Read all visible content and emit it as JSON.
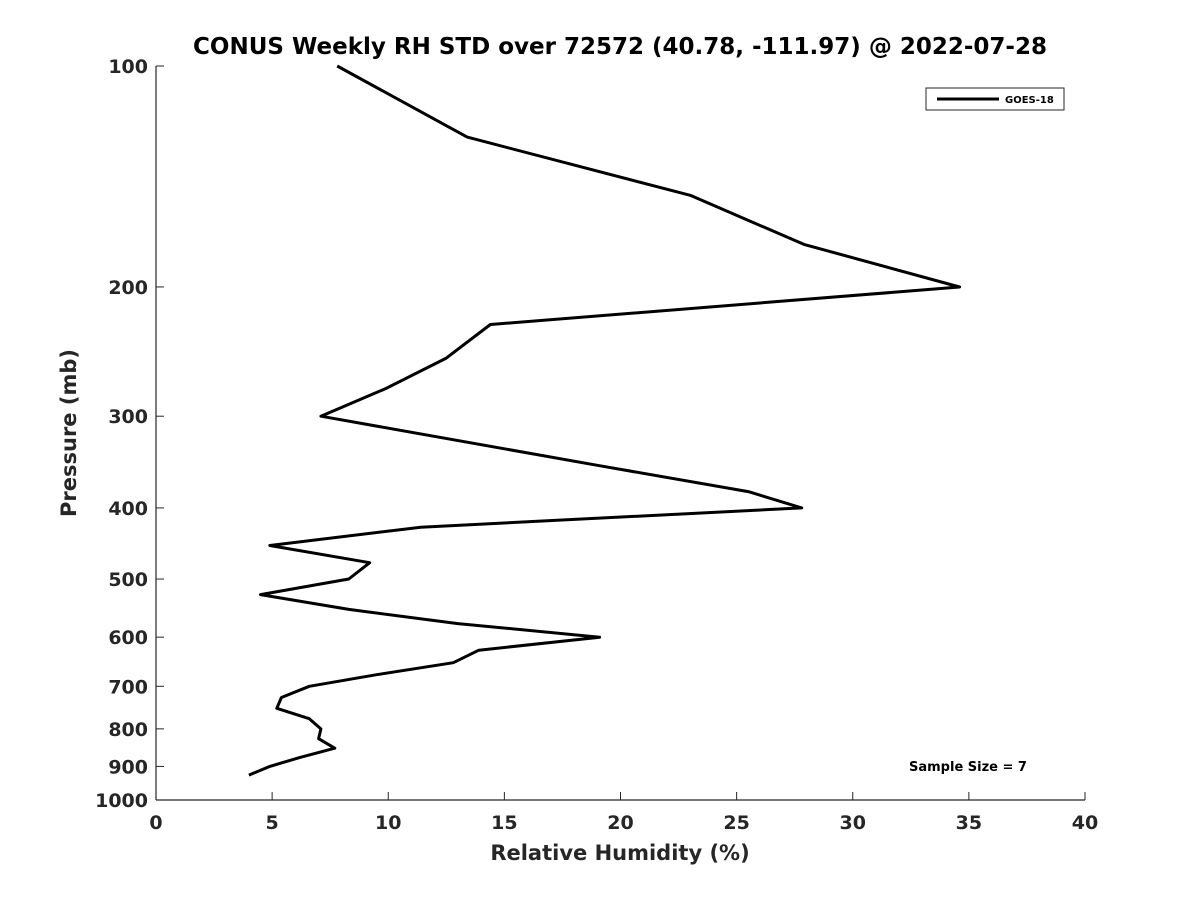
{
  "chart_data": {
    "type": "line",
    "title": "CONUS Weekly RH STD over 72572 (40.78, -111.97) @ 2022-07-28",
    "xlabel": "Relative Humidity (%)",
    "ylabel": "Pressure (mb)",
    "xlim": [
      0,
      40
    ],
    "ylim": [
      100,
      1000
    ],
    "y_scale": "log",
    "y_reversed": true,
    "grid": false,
    "legend_position": "top-right",
    "x_ticks": [
      0,
      5,
      10,
      15,
      20,
      25,
      30,
      35,
      40
    ],
    "y_ticks": [
      100,
      200,
      300,
      400,
      500,
      600,
      700,
      800,
      900,
      1000
    ],
    "series": [
      {
        "name": "GOES-18",
        "color": "#000000",
        "points": [
          {
            "x": 7.8,
            "y": 100
          },
          {
            "x": 13.4,
            "y": 125
          },
          {
            "x": 23.0,
            "y": 150
          },
          {
            "x": 27.9,
            "y": 175
          },
          {
            "x": 34.6,
            "y": 200
          },
          {
            "x": 14.4,
            "y": 225
          },
          {
            "x": 12.5,
            "y": 250
          },
          {
            "x": 9.9,
            "y": 275
          },
          {
            "x": 7.1,
            "y": 300
          },
          {
            "x": 19.0,
            "y": 350
          },
          {
            "x": 25.5,
            "y": 380
          },
          {
            "x": 27.8,
            "y": 400
          },
          {
            "x": 11.4,
            "y": 425
          },
          {
            "x": 4.9,
            "y": 450
          },
          {
            "x": 9.2,
            "y": 475
          },
          {
            "x": 8.3,
            "y": 500
          },
          {
            "x": 4.5,
            "y": 525
          },
          {
            "x": 8.3,
            "y": 550
          },
          {
            "x": 13.0,
            "y": 575
          },
          {
            "x": 19.1,
            "y": 600
          },
          {
            "x": 13.9,
            "y": 625
          },
          {
            "x": 12.8,
            "y": 650
          },
          {
            "x": 9.5,
            "y": 675
          },
          {
            "x": 6.6,
            "y": 700
          },
          {
            "x": 5.4,
            "y": 725
          },
          {
            "x": 5.2,
            "y": 750
          },
          {
            "x": 6.6,
            "y": 775
          },
          {
            "x": 7.1,
            "y": 800
          },
          {
            "x": 7.0,
            "y": 825
          },
          {
            "x": 7.7,
            "y": 850
          },
          {
            "x": 6.2,
            "y": 875
          },
          {
            "x": 4.9,
            "y": 900
          },
          {
            "x": 4.0,
            "y": 925
          }
        ]
      }
    ],
    "annotations": [
      "Sample Size = 7"
    ]
  }
}
